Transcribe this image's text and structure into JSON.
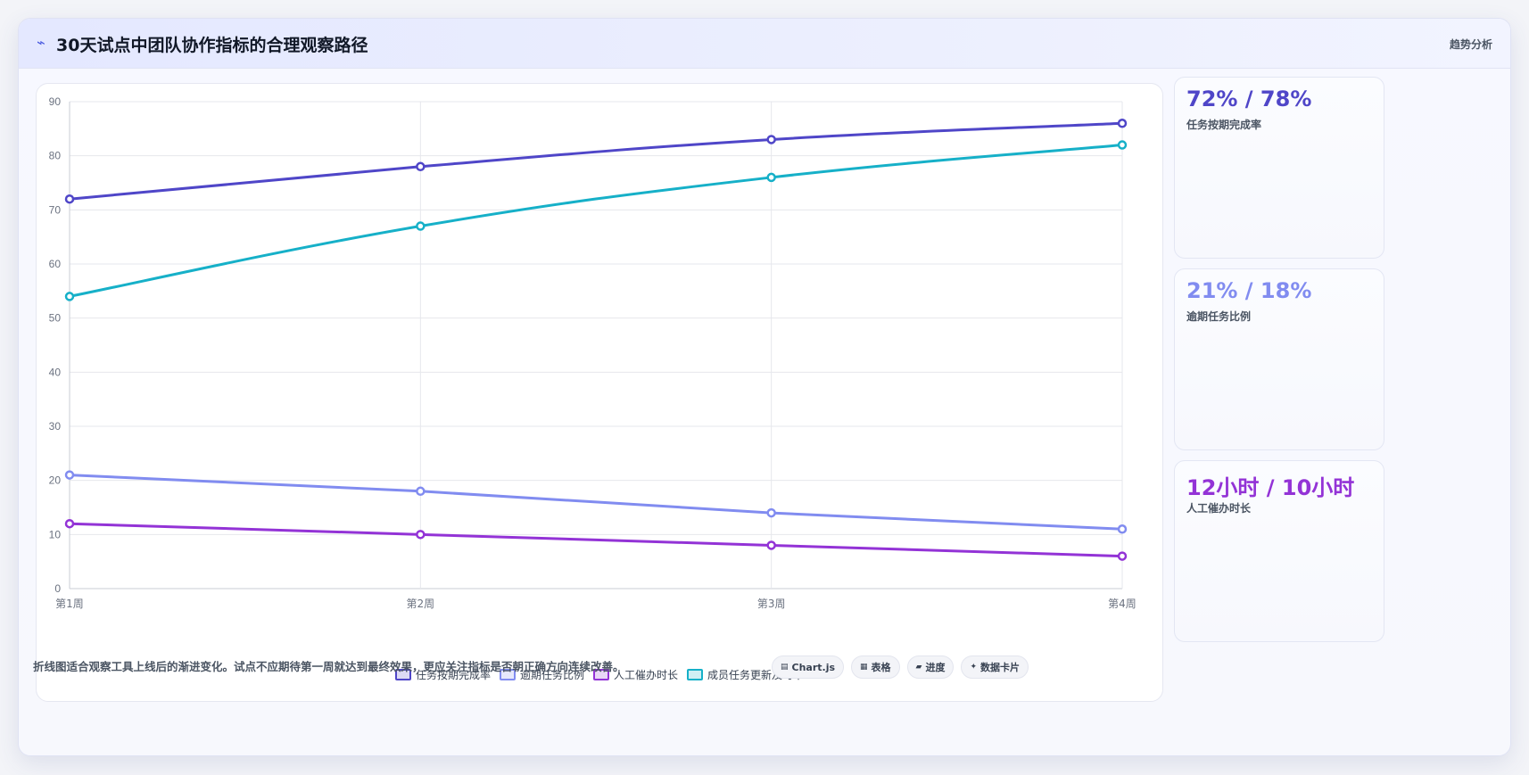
{
  "header": {
    "title": "30天试点中团队协作指标的合理观察路径",
    "title_icon": "trend-icon",
    "tag": "趋势分析"
  },
  "chart_data": {
    "type": "line",
    "categories": [
      "第1周",
      "第2周",
      "第3周",
      "第4周"
    ],
    "ylim": [
      0,
      90
    ],
    "yticks": [
      0,
      10,
      20,
      30,
      40,
      50,
      60,
      70,
      80,
      90
    ],
    "grid": true,
    "legend": "bottom",
    "series": [
      {
        "name": "任务按期完成率",
        "values": [
          72,
          78,
          83,
          86
        ],
        "color": "#4f46c8"
      },
      {
        "name": "逾期任务比例",
        "values": [
          21,
          18,
          14,
          11
        ],
        "color": "#818cf0"
      },
      {
        "name": "人工催办时长",
        "values": [
          12,
          10,
          8,
          6
        ],
        "color": "#9333d6"
      },
      {
        "name": "成员任务更新及时率",
        "values": [
          54,
          67,
          76,
          82
        ],
        "color": "#16b0c8"
      }
    ]
  },
  "stats": [
    {
      "value": "72% / 78%",
      "label": "任务按期完成率",
      "color": "#4f46c8"
    },
    {
      "value": "21% / 18%",
      "label": "逾期任务比例",
      "color": "#818cf0"
    },
    {
      "value": "12小时 / 10小时",
      "label": "人工催办时长",
      "color": "#9333d6"
    }
  ],
  "footnote": "折线图适合观察工具上线后的渐进变化。试点不应期待第一周就达到最终效果，更应关注指标是否朝正确方向连续改善。",
  "chips": [
    {
      "label": "Chart.js",
      "icon": "chart-icon",
      "glyph": "▤"
    },
    {
      "label": "表格",
      "icon": "table-icon",
      "glyph": "▦"
    },
    {
      "label": "进度",
      "icon": "progress-icon",
      "glyph": "▰"
    },
    {
      "label": "数据卡片",
      "icon": "card-icon",
      "glyph": "✦"
    }
  ]
}
